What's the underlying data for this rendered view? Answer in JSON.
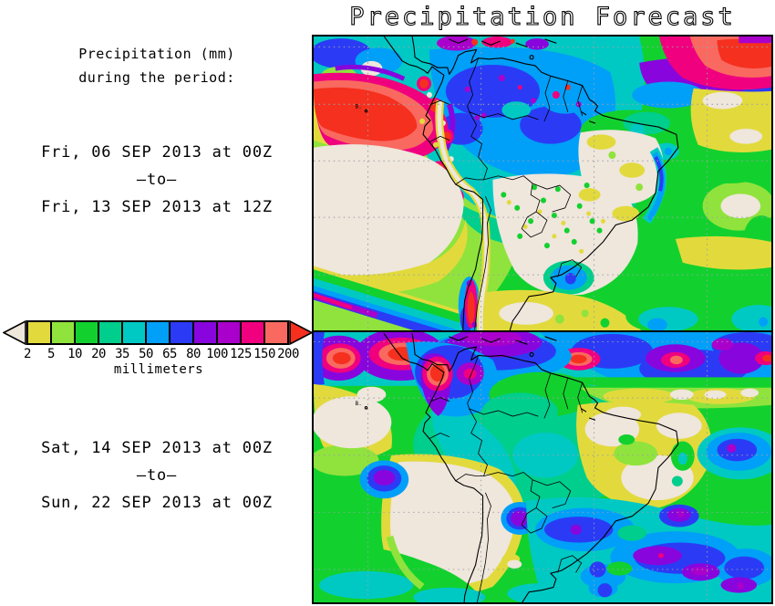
{
  "title": "Precipitation Forecast",
  "sidebar": {
    "subtitle_line1": "Precipitation (mm)",
    "subtitle_line2": "during the period:",
    "period1": {
      "start": "Fri, 06 SEP 2013 at 00Z",
      "separator": "–to–",
      "end": "Fri, 13 SEP 2013 at 12Z"
    },
    "period2": {
      "start": "Sat, 14 SEP 2013 at 00Z",
      "separator": "–to–",
      "end": "Sun, 22 SEP 2013 at 00Z"
    },
    "legend": {
      "unit_label": "millimeters",
      "tick_values": [
        "2",
        "5",
        "10",
        "20",
        "35",
        "50",
        "65",
        "80",
        "100",
        "125",
        "150",
        "200"
      ],
      "box_colors": [
        "#E2DA3C",
        "#90E33C",
        "#12D12E",
        "#00CE8C",
        "#00C9C4",
        "#009FF8",
        "#2B3BF5",
        "#8806DD",
        "#AA00CC",
        "#F0007E",
        "#F9695F"
      ],
      "below_min_color": "#EFE6DC",
      "above_max_color": "#F5301F"
    }
  },
  "chart_data": {
    "type": "heatmap",
    "title": "Precipitation Forecast",
    "variable": "Total precipitation",
    "unit": "millimeters",
    "region": "South America with adjacent eastern Pacific, Caribbean and western Atlantic",
    "small_map_label": "B.",
    "colorscale": {
      "bin_edges_mm": [
        2,
        5,
        10,
        20,
        35,
        50,
        65,
        80,
        100,
        125,
        150,
        200
      ],
      "bin_colors": [
        "#E2DA3C",
        "#90E33C",
        "#12D12E",
        "#00CE8C",
        "#00C9C4",
        "#009FF8",
        "#2B3BF5",
        "#8806DD",
        "#AA00CC",
        "#F0007E",
        "#F9695F"
      ],
      "below_2mm_color": "#EFE6DC",
      "above_200mm_color": "#F5301F"
    },
    "panels": [
      {
        "name": "panel-1",
        "period_start": "Fri, 06 SEP 2013 at 00Z",
        "period_end": "Fri, 13 SEP 2013 at 12Z",
        "features": [
          "150 to over 200 mm maxima over the SW Caribbean, Panama and NW Colombia",
          "80-200 mm band along the ITCZ over the far north tropical Atlantic",
          "35-80 mm over Colombia, Venezuela and the northwest Amazon basin",
          "Under 2 mm over the SE Pacific subtropics, the Peru-Chile coast and central Brazil",
          "35-150 mm SW-NE oriented frontal band approaching central Chile",
          "2-20 mm over eastern Brazil and the subtropical South Atlantic"
        ]
      },
      {
        "name": "panel-2",
        "period_start": "Sat, 14 SEP 2013 at 00Z",
        "period_end": "Sun, 22 SEP 2013 at 00Z",
        "features": [
          "80 to over 200 mm ITCZ band across the southern Caribbean and tropical North Atlantic",
          "150-200 mm cores near Panama, western Colombia and offshore Venezuela",
          "20-65 mm over most of the Amazon basin with isolated 80-125 mm cells",
          "Under 2 mm over the SE Pacific, northern Chile, western Argentina and interior NE Brazil",
          "50-125 mm storm-track cluster over southern Brazil, Uruguay and the SW Atlantic"
        ]
      }
    ],
    "graticule": "dotted latitude/longitude grid"
  }
}
